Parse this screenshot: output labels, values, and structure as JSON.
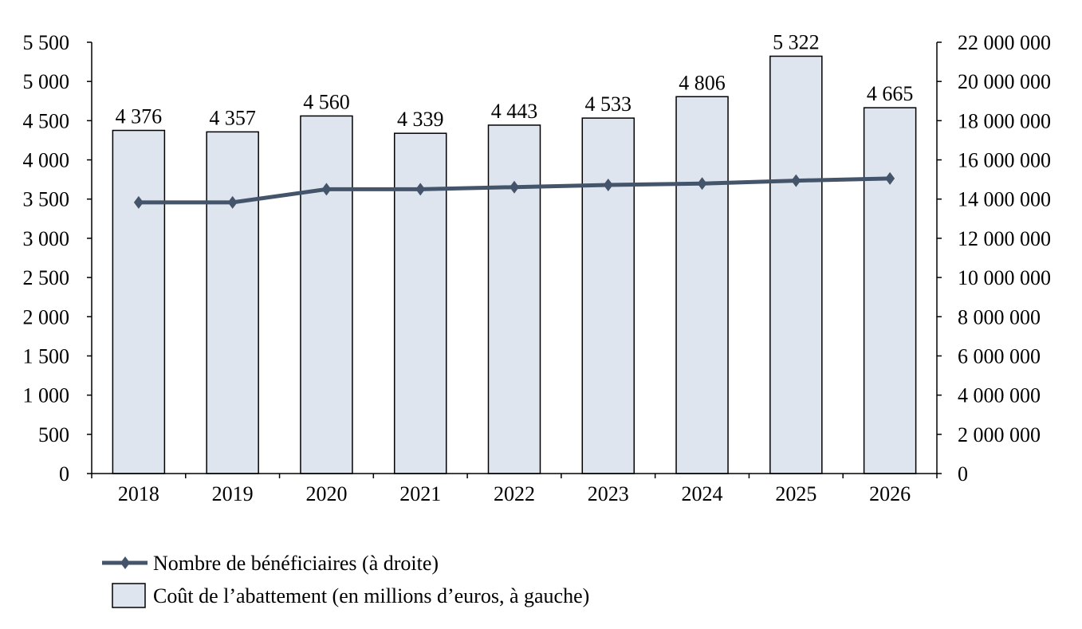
{
  "chart_data": {
    "type": "bar+line",
    "categories": [
      "2018",
      "2019",
      "2020",
      "2021",
      "2022",
      "2023",
      "2024",
      "2025",
      "2026"
    ],
    "series": [
      {
        "name": "Coût de l’abattement (en millions d’euros, à gauche)",
        "type": "bar",
        "axis": "left",
        "values": [
          4376,
          4357,
          4560,
          4339,
          4443,
          4533,
          4806,
          5322,
          4665
        ],
        "labels": [
          "4 376",
          "4 357",
          "4 560",
          "4 339",
          "4 443",
          "4 533",
          "4 806",
          "5 322",
          "4 665"
        ],
        "color": "#DFE5EF"
      },
      {
        "name": "Nombre de bénéficiaires (à droite)",
        "type": "line",
        "axis": "right",
        "values": [
          13830000,
          13830000,
          14500000,
          14500000,
          14610000,
          14720000,
          14790000,
          14940000,
          15050000
        ],
        "color": "#44546A",
        "marker": "diamond"
      }
    ],
    "left_axis": {
      "range": [
        0,
        5500
      ],
      "ticks": [
        "0",
        "500",
        "1 000",
        "1 500",
        "2 000",
        "2 500",
        "3 000",
        "3 500",
        "4 000",
        "4 500",
        "5 000",
        "5 500"
      ]
    },
    "right_axis": {
      "range": [
        0,
        22000000
      ],
      "ticks": [
        "0",
        "2 000 000",
        "4 000 000",
        "6 000 000",
        "8 000 000",
        "10 000 000",
        "12 000 000",
        "14 000 000",
        "16 000 000",
        "18 000 000",
        "20 000 000",
        "22 000 000"
      ]
    },
    "grid": false,
    "legend_position": "bottom-left"
  }
}
